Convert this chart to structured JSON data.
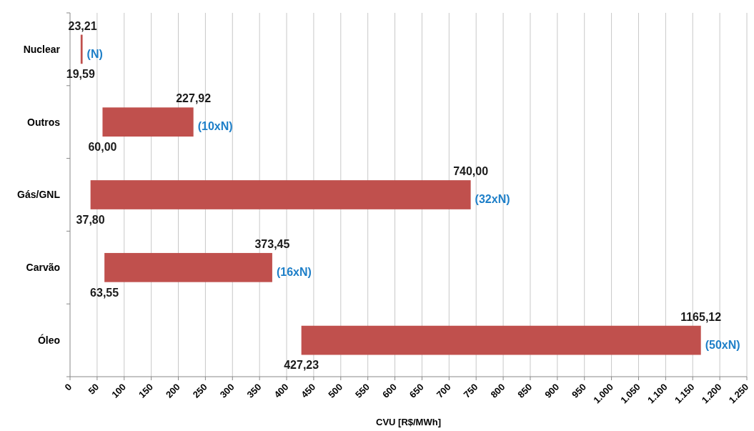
{
  "chart_data": {
    "type": "bar",
    "orientation": "horizontal",
    "xlabel": "CVU [R$/MWh]",
    "categories": [
      "Nuclear",
      "Outros",
      "Gás/GNL",
      "Carvão",
      "Óleo"
    ],
    "base": [
      19.59,
      60.0,
      37.8,
      63.55,
      427.23
    ],
    "values": [
      3.62,
      167.92,
      702.2,
      309.9,
      737.89
    ],
    "color": "#c0504d",
    "xlim": [
      0,
      1250
    ],
    "xticks": [
      0,
      50,
      100,
      150,
      200,
      250,
      300,
      350,
      400,
      450,
      500,
      550,
      600,
      650,
      700,
      750,
      800,
      850,
      900,
      950,
      {
        "value": 1000,
        "label": "1.000"
      },
      {
        "value": 1050,
        "label": "1.050"
      },
      {
        "value": 1100,
        "label": "1.100"
      },
      {
        "value": 1150,
        "label": "1.150"
      },
      {
        "value": 1200,
        "label": "1.200"
      },
      {
        "value": 1250,
        "label": "1.250"
      }
    ],
    "grid": "x",
    "annotations": [
      {
        "text": "19,59",
        "x": 19.59,
        "y": "Nuclear"
      },
      {
        "text": "23,21",
        "x": 23.21,
        "y": "Nuclear"
      },
      {
        "text": "(N)",
        "x": 23.21,
        "y": "Nuclear"
      },
      {
        "text": "60,00",
        "x": 60.0,
        "y": "Outros"
      },
      {
        "text": "227,92",
        "x": 227.92,
        "y": "Outros"
      },
      {
        "text": "(10xN)",
        "x": 227.92,
        "y": "Outros"
      },
      {
        "text": "37,80",
        "x": 37.8,
        "y": "Gás/GNL"
      },
      {
        "text": "740,00",
        "x": 740.0,
        "y": "Gás/GNL"
      },
      {
        "text": "(32xN)",
        "x": 740.0,
        "y": "Gás/GNL"
      },
      {
        "text": "63,55",
        "x": 63.55,
        "y": "Carvão"
      },
      {
        "text": "373,45",
        "x": 373.45,
        "y": "Carvão"
      },
      {
        "text": "(16xN)",
        "x": 373.45,
        "y": "Carvão"
      },
      {
        "text": "427,23",
        "x": 427.23,
        "y": "Óleo"
      },
      {
        "text": "1165,12",
        "x": 1165.12,
        "y": "Óleo"
      },
      {
        "text": "(50xN)",
        "x": 1165.12,
        "y": "Óleo"
      }
    ]
  }
}
